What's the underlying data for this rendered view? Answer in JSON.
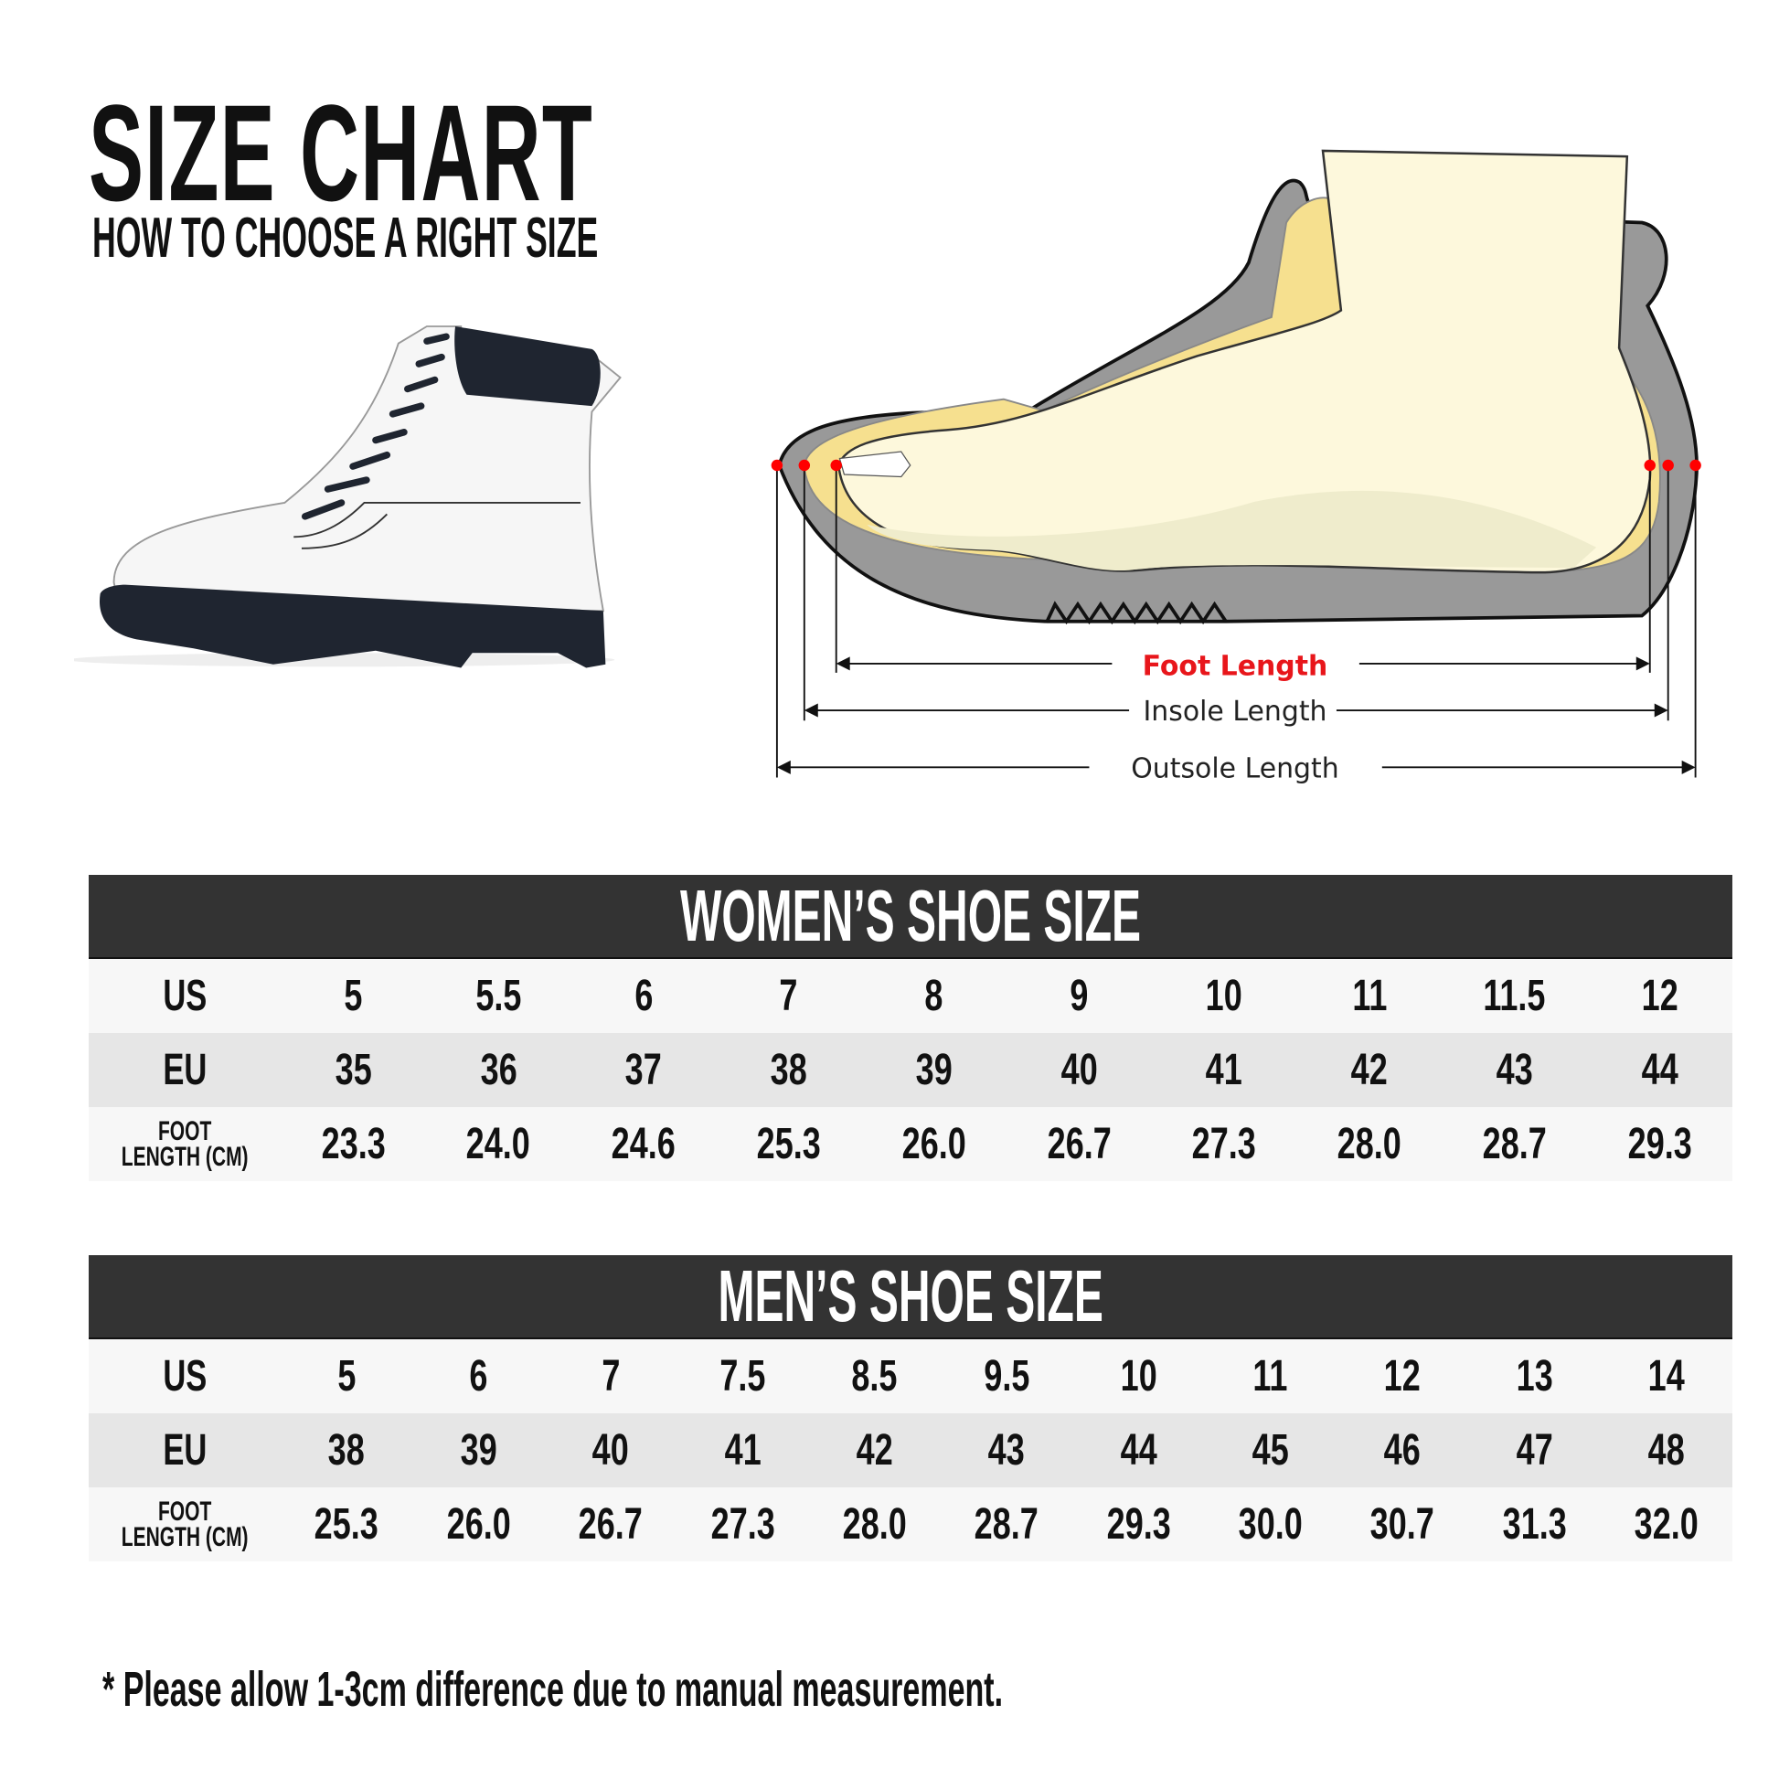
{
  "header": {
    "title": "SIZE CHART",
    "subtitle": "HOW TO CHOOSE A RIGHT SIZE"
  },
  "diagram": {
    "foot_length": "Foot Length",
    "insole_length": "Insole Length",
    "outsole_length": "Outsole Length",
    "colors": {
      "foot_length": "#e8161b",
      "outsole": "#999999",
      "insole": "#f6e08f",
      "foot": "#fdf8dc",
      "marker": "#ff0000"
    }
  },
  "women": {
    "title": "WOMEN’S SHOE SIZE",
    "rows": [
      {
        "label": "US",
        "values": [
          "5",
          "5.5",
          "6",
          "7",
          "8",
          "9",
          "10",
          "11",
          "11.5",
          "12"
        ]
      },
      {
        "label": "EU",
        "values": [
          "35",
          "36",
          "37",
          "38",
          "39",
          "40",
          "41",
          "42",
          "43",
          "44"
        ]
      },
      {
        "label": "FOOT LENGTH (CM)",
        "label_line1": "FOOT",
        "label_line2": "LENGTH (CM)",
        "values": [
          "23.3",
          "24.0",
          "24.6",
          "25.3",
          "26.0",
          "26.7",
          "27.3",
          "28.0",
          "28.7",
          "29.3"
        ]
      }
    ]
  },
  "men": {
    "title": "MEN’S SHOE SIZE",
    "rows": [
      {
        "label": "US",
        "values": [
          "5",
          "6",
          "7",
          "7.5",
          "8.5",
          "9.5",
          "10",
          "11",
          "12",
          "13",
          "14"
        ]
      },
      {
        "label": "EU",
        "values": [
          "38",
          "39",
          "40",
          "41",
          "42",
          "43",
          "44",
          "45",
          "46",
          "47",
          "48"
        ]
      },
      {
        "label": "FOOT LENGTH (CM)",
        "label_line1": "FOOT",
        "label_line2": "LENGTH (CM)",
        "values": [
          "25.3",
          "26.0",
          "26.7",
          "27.3",
          "28.0",
          "28.7",
          "29.3",
          "30.0",
          "30.7",
          "31.3",
          "32.0"
        ]
      }
    ]
  },
  "footnote": "* Please allow 1-3cm difference due to manual measurement.",
  "colors": {
    "table_header": "#333333",
    "row_light": "#f7f7f7",
    "row_dark": "#e6e6e6"
  }
}
